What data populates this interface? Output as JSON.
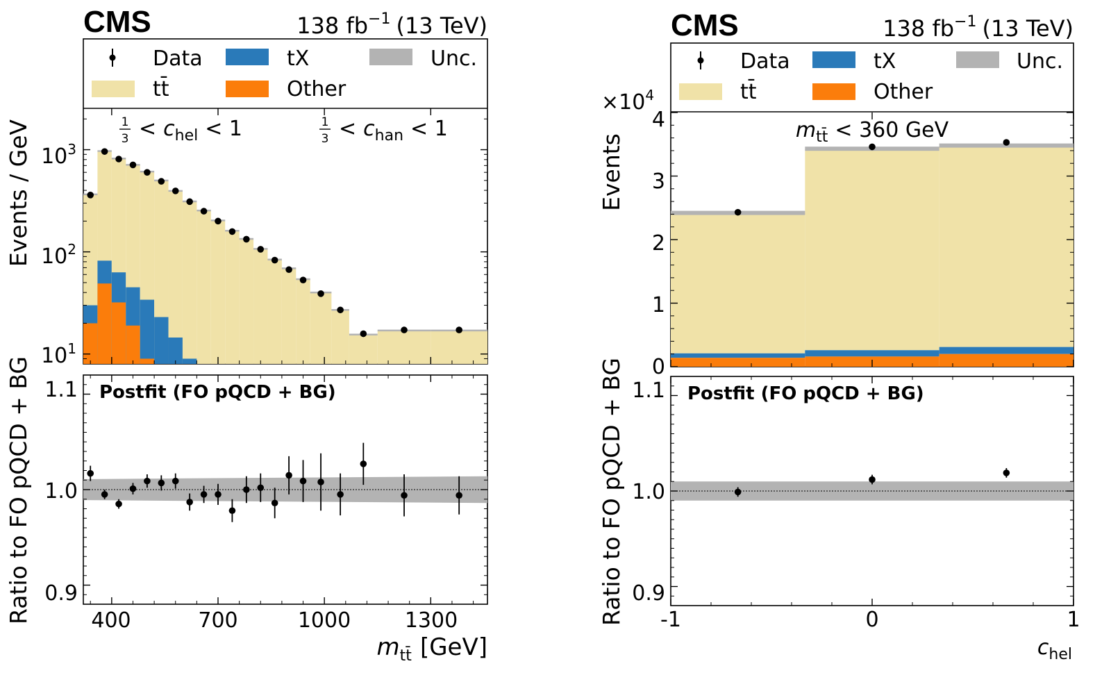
{
  "left_panel": {
    "experiment": "CMS",
    "lumi_prefix": "138 fb",
    "lumi_exponent": "−1",
    "lumi_suffix": "(13 TeV)",
    "legend": {
      "data": "Data",
      "tx": "tX",
      "unc": "Unc.",
      "ttbar": "tt̄",
      "other": "Other"
    },
    "cut_left": {
      "frac_num": "1",
      "frac_den": "3",
      "lt1": "<",
      "var": "c",
      "sub": "hel",
      "rest": "< 1"
    },
    "cut_right": {
      "frac_num": "1",
      "frac_den": "3",
      "lt1": "<",
      "var": "c",
      "sub": "han",
      "rest": "< 1"
    },
    "ylabel_top": "Events / GeV",
    "ylabel_bottom": "Ratio to FO pQCD + BG",
    "postfit_label": "Postfit (FO pQCD + BG)",
    "xlabel_var": "m",
    "xlabel_sub": "tt̄",
    "xlabel_unit": "[GeV]",
    "xtick_labels": [
      "400",
      "700",
      "1000",
      "1300"
    ],
    "ytick_top_labels": [
      {
        "base": "10",
        "exp": "1"
      },
      {
        "base": "10",
        "exp": "2"
      },
      {
        "base": "10",
        "exp": "3"
      }
    ],
    "ytick_bottom_labels": [
      "0.9",
      "1.0",
      "1.1"
    ]
  },
  "right_panel": {
    "experiment": "CMS",
    "lumi_prefix": "138 fb",
    "lumi_exponent": "−1",
    "lumi_suffix": "(13 TeV)",
    "legend": {
      "data": "Data",
      "tx": "tX",
      "unc": "Unc.",
      "ttbar": "tt̄",
      "other": "Other"
    },
    "multiplier_base": "×10",
    "multiplier_exp": "4",
    "cut_var": "m",
    "cut_sub": "tt̄",
    "cut_rest": "< 360 GeV",
    "ylabel_top": "Events",
    "ylabel_bottom": "Ratio to FO pQCD + BG",
    "postfit_label": "Postfit (FO pQCD + BG)",
    "xlabel_var": "c",
    "xlabel_sub": "hel",
    "xtick_labels": [
      "-1",
      "0",
      "1"
    ],
    "ytick_top_labels": [
      "0",
      "1",
      "2",
      "3",
      "4"
    ],
    "ytick_bottom_labels": [
      "0.9",
      "1.0",
      "1.1"
    ]
  },
  "colors": {
    "ttbar": "#f0e2a8",
    "tx": "#2a7ab9",
    "other": "#fb7d0b",
    "unc": "#b3b3b3",
    "data": "#000000"
  },
  "chart_data": [
    {
      "type": "bar",
      "title": "",
      "xlabel": "m_tt̄ [GeV]",
      "ylabel": "Events / GeV",
      "yscale": "log",
      "xlim": [
        320,
        1460
      ],
      "ylim": [
        8,
        2500
      ],
      "bin_edges": [
        320,
        360,
        400,
        440,
        480,
        520,
        560,
        600,
        640,
        680,
        720,
        760,
        800,
        840,
        880,
        920,
        960,
        1020,
        1070,
        1150,
        1300,
        1460
      ],
      "series": [
        {
          "name": "tt̄",
          "values": [
            365,
            970,
            820,
            710,
            610,
            500,
            395,
            312,
            254,
            203,
            161,
            134,
            107,
            84,
            69,
            54,
            40,
            27,
            15.5,
            17,
            17
          ]
        },
        {
          "name": "tX",
          "values": [
            30,
            82,
            63,
            45,
            34,
            23,
            14.5,
            9,
            8,
            8,
            8,
            8,
            8,
            8,
            8,
            8,
            8,
            8,
            8,
            8,
            8
          ]
        },
        {
          "name": "Other",
          "values": [
            20,
            49,
            32,
            19,
            9,
            8,
            8,
            8,
            8,
            8,
            8,
            8,
            8,
            8,
            8,
            8,
            8,
            8,
            8,
            8,
            8
          ]
        }
      ],
      "data_points": {
        "name": "Data",
        "x": [
          340,
          380,
          420,
          460,
          500,
          540,
          580,
          620,
          660,
          700,
          740,
          780,
          820,
          860,
          900,
          940,
          990,
          1045,
          1110,
          1225,
          1380
        ],
        "y": [
          360,
          960,
          810,
          710,
          600,
          490,
          395,
          310,
          250,
          200,
          158,
          133,
          106,
          83,
          67,
          53,
          39,
          27,
          15.8,
          17.2,
          17.2
        ]
      }
    },
    {
      "type": "scatter",
      "title": "Postfit (FO pQCD + BG)",
      "xlabel": "m_tt̄ [GeV]",
      "ylabel": "Ratio to FO pQCD + BG",
      "xlim": [
        320,
        1460
      ],
      "ylim": [
        0.88,
        1.12
      ],
      "reference_line": 1.0,
      "unc_band": {
        "name": "Unc.",
        "x": [
          320,
          1460
        ],
        "low": [
          0.989,
          0.986
        ],
        "high": [
          1.011,
          1.014
        ]
      },
      "series": [
        {
          "name": "Data",
          "x": [
            340,
            380,
            420,
            460,
            500,
            540,
            580,
            620,
            660,
            700,
            740,
            780,
            820,
            860,
            900,
            940,
            990,
            1045,
            1110,
            1225,
            1380
          ],
          "y": [
            1.017,
            0.995,
            0.985,
            1.001,
            1.009,
            1.007,
            1.009,
            0.987,
            0.995,
            0.995,
            0.978,
            1.0,
            1.002,
            0.986,
            1.015,
            1.009,
            1.008,
            0.995,
            1.027,
            0.994,
            0.994
          ],
          "err": [
            0.008,
            0.005,
            0.005,
            0.006,
            0.007,
            0.008,
            0.008,
            0.009,
            0.009,
            0.011,
            0.012,
            0.014,
            0.015,
            0.016,
            0.02,
            0.022,
            0.03,
            0.022,
            0.022,
            0.022,
            0.02
          ]
        }
      ]
    },
    {
      "type": "bar",
      "title": "",
      "xlabel": "c_hel",
      "ylabel": "Events",
      "xlim": [
        -1,
        1
      ],
      "ylim": [
        0,
        40000
      ],
      "bin_edges": [
        -1,
        -0.3333,
        0.3333,
        1
      ],
      "series": [
        {
          "name": "tt̄",
          "values": [
            22100,
            31700,
            31700
          ]
        },
        {
          "name": "tX",
          "values": [
            700,
            1000,
            1100
          ]
        },
        {
          "name": "Other",
          "values": [
            1400,
            1600,
            2000
          ]
        }
      ],
      "data_points": {
        "name": "Data",
        "x": [
          -0.6667,
          0,
          0.6667
        ],
        "y": [
          24300,
          34600,
          35300
        ]
      }
    },
    {
      "type": "scatter",
      "title": "Postfit (FO pQCD + BG)",
      "xlabel": "c_hel",
      "ylabel": "Ratio to FO pQCD + BG",
      "xlim": [
        -1,
        1
      ],
      "ylim": [
        0.88,
        1.12
      ],
      "reference_line": 1.0,
      "unc_band": {
        "name": "Unc.",
        "x": [
          -1,
          1
        ],
        "low": [
          0.99,
          0.99
        ],
        "high": [
          1.01,
          1.01
        ]
      },
      "series": [
        {
          "name": "Data",
          "x": [
            -0.6667,
            0,
            0.6667
          ],
          "y": [
            0.999,
            1.012,
            1.019
          ],
          "err": [
            0.005,
            0.005,
            0.005
          ]
        }
      ]
    }
  ]
}
